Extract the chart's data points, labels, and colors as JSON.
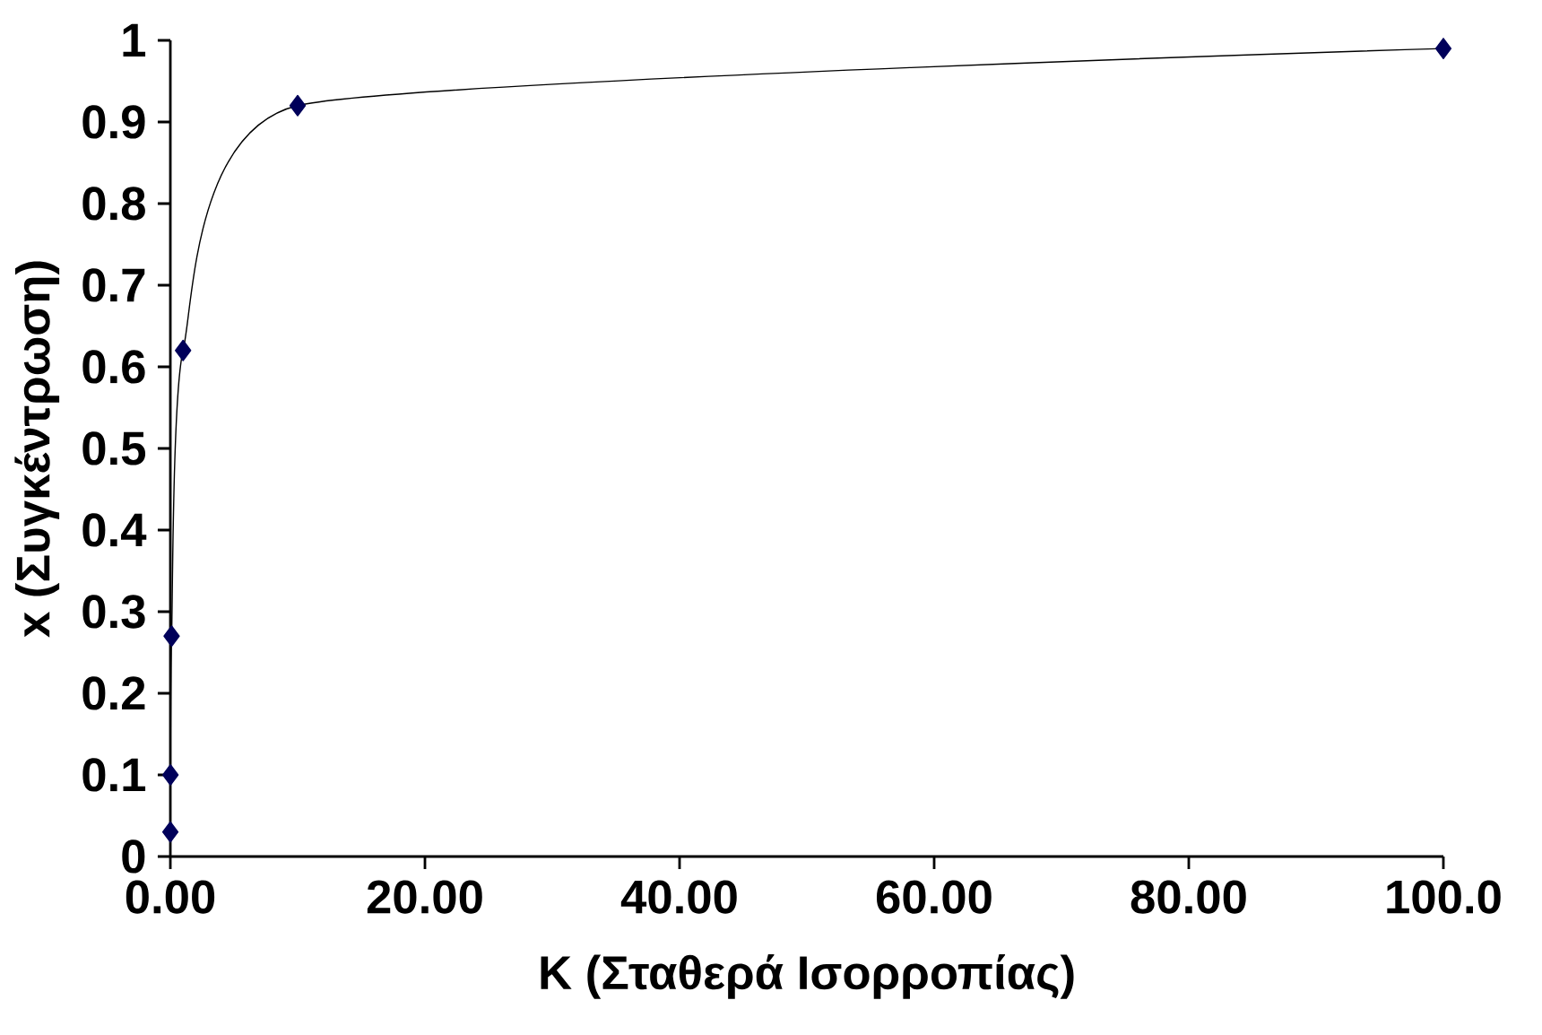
{
  "chart_data": {
    "type": "line",
    "xlabel": "K (Σταθερά Ισορροπίας)",
    "ylabel": "x (Συγκέντρωση)",
    "x": [
      0.001,
      0.01,
      0.1,
      1,
      10,
      100
    ],
    "series": [
      {
        "color": "#00005a",
        "values": [
          0.03,
          0.1,
          0.27,
          0.62,
          0.92,
          0.99
        ]
      }
    ],
    "xlim": [
      0,
      100
    ],
    "ylim": [
      0,
      1
    ],
    "xticks": [
      {
        "value": 0,
        "label": "0.00"
      },
      {
        "value": 20,
        "label": "20.00"
      },
      {
        "value": 40,
        "label": "40.00"
      },
      {
        "value": 60,
        "label": "60.00"
      },
      {
        "value": 80,
        "label": "80.00"
      },
      {
        "value": 100,
        "label": "100.0"
      }
    ],
    "yticks": [
      0,
      0.1,
      0.2,
      0.3,
      0.4,
      0.5,
      0.6,
      0.7,
      0.8,
      0.9,
      1
    ],
    "marker": "diamond",
    "line_style": "solid",
    "grid": false
  }
}
